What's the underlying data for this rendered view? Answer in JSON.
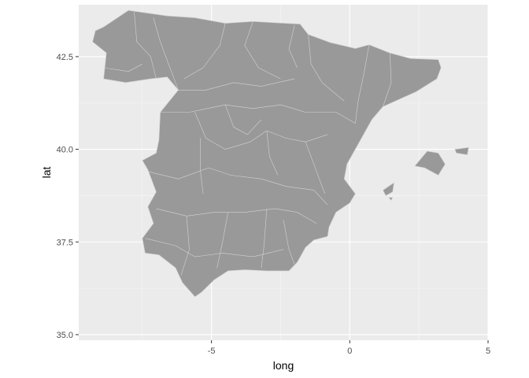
{
  "chart_data": {
    "type": "map",
    "xlabel": "long",
    "ylabel": "lat",
    "xlim": [
      -9.8,
      5.0
    ],
    "ylim": [
      34.85,
      43.9
    ],
    "x_ticks": [
      -5,
      0,
      5
    ],
    "x_tick_labels": [
      "-5",
      "0",
      "5"
    ],
    "y_ticks": [
      35.0,
      37.5,
      40.0,
      42.5
    ],
    "y_tick_labels": [
      "35.0",
      "37.5",
      "40.0",
      "42.5"
    ],
    "grid": true,
    "colors": {
      "panel": "#ebebeb",
      "grid_major": "#ffffff",
      "grid_minor": "#f4f4f4",
      "fill": "#999999",
      "border": "#d3d3d3",
      "tick": "#333333"
    },
    "regions": [
      {
        "name": "mainland",
        "coords": [
          [
            -8.9,
            43.3
          ],
          [
            -8.0,
            43.75
          ],
          [
            -6.6,
            43.6
          ],
          [
            -5.6,
            43.55
          ],
          [
            -4.5,
            43.4
          ],
          [
            -3.5,
            43.45
          ],
          [
            -2.8,
            43.42
          ],
          [
            -1.8,
            43.38
          ],
          [
            -1.5,
            43.1
          ],
          [
            -0.7,
            42.88
          ],
          [
            0.2,
            42.72
          ],
          [
            0.7,
            42.82
          ],
          [
            1.45,
            42.6
          ],
          [
            2.2,
            42.45
          ],
          [
            3.2,
            42.42
          ],
          [
            3.3,
            42.2
          ],
          [
            3.15,
            41.9
          ],
          [
            2.4,
            41.55
          ],
          [
            1.2,
            41.15
          ],
          [
            0.8,
            40.8
          ],
          [
            0.2,
            40.0
          ],
          [
            -0.1,
            39.6
          ],
          [
            -0.2,
            39.2
          ],
          [
            0.2,
            38.8
          ],
          [
            0.0,
            38.55
          ],
          [
            -0.5,
            38.3
          ],
          [
            -0.75,
            37.9
          ],
          [
            -0.8,
            37.65
          ],
          [
            -1.3,
            37.55
          ],
          [
            -1.6,
            37.35
          ],
          [
            -1.9,
            36.95
          ],
          [
            -2.2,
            36.72
          ],
          [
            -3.0,
            36.72
          ],
          [
            -3.8,
            36.75
          ],
          [
            -4.4,
            36.72
          ],
          [
            -4.9,
            36.48
          ],
          [
            -5.35,
            36.15
          ],
          [
            -5.6,
            36.02
          ],
          [
            -6.05,
            36.4
          ],
          [
            -6.3,
            36.8
          ],
          [
            -6.9,
            37.15
          ],
          [
            -7.4,
            37.2
          ],
          [
            -7.5,
            37.6
          ],
          [
            -7.1,
            38.0
          ],
          [
            -7.3,
            38.45
          ],
          [
            -7.0,
            38.85
          ],
          [
            -7.3,
            39.45
          ],
          [
            -7.5,
            39.7
          ],
          [
            -7.0,
            39.9
          ],
          [
            -6.9,
            40.25
          ],
          [
            -6.85,
            41.0
          ],
          [
            -6.2,
            41.6
          ],
          [
            -6.6,
            41.95
          ],
          [
            -7.2,
            41.9
          ],
          [
            -8.1,
            41.8
          ],
          [
            -8.9,
            41.9
          ],
          [
            -8.8,
            42.6
          ],
          [
            -9.3,
            42.9
          ],
          [
            -9.2,
            43.2
          ]
        ]
      },
      {
        "name": "mallorca",
        "coords": [
          [
            2.35,
            39.55
          ],
          [
            2.8,
            39.95
          ],
          [
            3.2,
            39.9
          ],
          [
            3.45,
            39.6
          ],
          [
            3.2,
            39.3
          ],
          [
            2.7,
            39.5
          ]
        ]
      },
      {
        "name": "menorca",
        "coords": [
          [
            3.8,
            40.0
          ],
          [
            4.3,
            40.05
          ],
          [
            4.25,
            39.85
          ],
          [
            3.85,
            39.9
          ]
        ]
      },
      {
        "name": "ibiza",
        "coords": [
          [
            1.2,
            38.9
          ],
          [
            1.6,
            39.1
          ],
          [
            1.55,
            38.85
          ],
          [
            1.3,
            38.75
          ]
        ]
      },
      {
        "name": "formentera",
        "coords": [
          [
            1.4,
            38.7
          ],
          [
            1.55,
            38.7
          ],
          [
            1.5,
            38.62
          ]
        ]
      }
    ],
    "internal_borders": [
      [
        [
          -7.8,
          43.75
        ],
        [
          -7.7,
          42.9
        ],
        [
          -7.2,
          42.5
        ],
        [
          -7.0,
          41.9
        ]
      ],
      [
        [
          -8.9,
          42.2
        ],
        [
          -8.0,
          42.1
        ],
        [
          -7.5,
          42.3
        ]
      ],
      [
        [
          -7.1,
          43.55
        ],
        [
          -6.85,
          42.9
        ],
        [
          -6.6,
          42.4
        ],
        [
          -6.2,
          41.6
        ]
      ],
      [
        [
          -4.5,
          43.4
        ],
        [
          -4.7,
          42.8
        ],
        [
          -5.3,
          42.2
        ],
        [
          -6.0,
          41.9
        ]
      ],
      [
        [
          -3.5,
          43.45
        ],
        [
          -3.8,
          42.8
        ],
        [
          -3.3,
          42.2
        ],
        [
          -2.5,
          41.9
        ]
      ],
      [
        [
          -2.0,
          43.35
        ],
        [
          -2.2,
          42.7
        ],
        [
          -1.9,
          42.2
        ]
      ],
      [
        [
          -1.5,
          43.1
        ],
        [
          -1.4,
          42.3
        ],
        [
          -1.0,
          41.8
        ],
        [
          -0.2,
          41.3
        ]
      ],
      [
        [
          0.7,
          42.82
        ],
        [
          0.5,
          42.0
        ],
        [
          0.3,
          41.3
        ],
        [
          0.2,
          40.7
        ]
      ],
      [
        [
          1.45,
          42.6
        ],
        [
          1.5,
          41.8
        ],
        [
          1.2,
          41.15
        ]
      ],
      [
        [
          -6.85,
          41.0
        ],
        [
          -5.8,
          41.0
        ],
        [
          -4.5,
          41.2
        ],
        [
          -3.5,
          41.1
        ],
        [
          -2.5,
          41.2
        ],
        [
          -1.6,
          41.0
        ],
        [
          -0.5,
          41.0
        ],
        [
          0.2,
          40.7
        ]
      ],
      [
        [
          -6.2,
          41.6
        ],
        [
          -5.2,
          41.6
        ],
        [
          -4.2,
          41.8
        ],
        [
          -3.2,
          41.7
        ],
        [
          -2.0,
          41.9
        ]
      ],
      [
        [
          -5.6,
          41.0
        ],
        [
          -5.2,
          40.3
        ],
        [
          -4.5,
          40.0
        ],
        [
          -3.6,
          40.2
        ],
        [
          -3.0,
          40.5
        ],
        [
          -2.3,
          40.3
        ],
        [
          -1.6,
          40.2
        ],
        [
          -0.8,
          40.4
        ]
      ],
      [
        [
          -4.5,
          41.2
        ],
        [
          -4.2,
          40.6
        ],
        [
          -3.7,
          40.4
        ],
        [
          -3.2,
          40.8
        ]
      ],
      [
        [
          -7.3,
          39.4
        ],
        [
          -6.2,
          39.2
        ],
        [
          -5.1,
          39.5
        ],
        [
          -4.3,
          39.3
        ],
        [
          -3.2,
          39.2
        ],
        [
          -2.3,
          39.0
        ],
        [
          -1.3,
          38.9
        ],
        [
          -0.8,
          38.5
        ]
      ],
      [
        [
          -5.4,
          40.3
        ],
        [
          -5.4,
          39.4
        ],
        [
          -5.3,
          38.8
        ]
      ],
      [
        [
          -3.0,
          40.5
        ],
        [
          -2.9,
          39.8
        ],
        [
          -2.6,
          39.3
        ]
      ],
      [
        [
          -1.6,
          40.2
        ],
        [
          -1.2,
          39.4
        ],
        [
          -0.9,
          38.8
        ]
      ],
      [
        [
          -7.0,
          38.4
        ],
        [
          -5.9,
          38.2
        ],
        [
          -4.9,
          38.3
        ],
        [
          -3.8,
          38.3
        ],
        [
          -2.7,
          38.4
        ],
        [
          -1.9,
          38.3
        ],
        [
          -1.2,
          38.0
        ]
      ],
      [
        [
          -5.9,
          38.2
        ],
        [
          -5.8,
          37.3
        ],
        [
          -6.1,
          36.6
        ]
      ],
      [
        [
          -4.4,
          38.3
        ],
        [
          -4.6,
          37.5
        ],
        [
          -4.8,
          36.8
        ]
      ],
      [
        [
          -3.0,
          38.4
        ],
        [
          -3.1,
          37.4
        ],
        [
          -3.2,
          36.8
        ]
      ],
      [
        [
          -2.4,
          38.1
        ],
        [
          -2.2,
          37.3
        ],
        [
          -2.0,
          36.9
        ]
      ],
      [
        [
          -7.4,
          37.6
        ],
        [
          -6.3,
          37.4
        ],
        [
          -5.6,
          37.1
        ],
        [
          -4.6,
          37.2
        ],
        [
          -3.5,
          37.1
        ],
        [
          -2.4,
          37.3
        ]
      ]
    ]
  }
}
